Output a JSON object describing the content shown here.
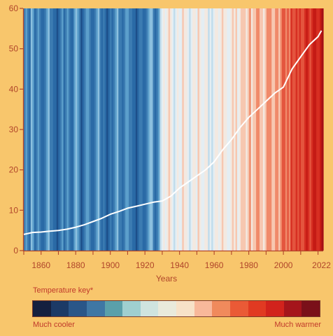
{
  "chart_data": {
    "type": "line",
    "background_stripes": true,
    "years_start": 1850,
    "years_end": 2023,
    "stripe_colors": [
      "#153d6e",
      "#1d4f8a",
      "#2a6aa6",
      "#3c7cb2",
      "#5c9fcb",
      "#8cc0df",
      "#c0dcec",
      "#e4eef3",
      "#f3e9e1",
      "#f7c7b0",
      "#f08a6a",
      "#e4553e",
      "#d72f22",
      "#c51b15",
      "#a50f15"
    ],
    "stripe_pattern": [
      3,
      4,
      3,
      2,
      5,
      4,
      2,
      3,
      4,
      3,
      2,
      2,
      3,
      4,
      5,
      3,
      3,
      2,
      2,
      1,
      2,
      3,
      4,
      2,
      3,
      4,
      3,
      2,
      2,
      4,
      5,
      4,
      3,
      1,
      2,
      3,
      4,
      4,
      3,
      2,
      2,
      3,
      4,
      5,
      3,
      2,
      3,
      2,
      1,
      2,
      3,
      2,
      3,
      4,
      5,
      3,
      3,
      2,
      3,
      4,
      4,
      3,
      3,
      2,
      2,
      1,
      2,
      3,
      3,
      2,
      2,
      3,
      4,
      5,
      5,
      3,
      2,
      3,
      4,
      6,
      7,
      8,
      7,
      8,
      9,
      8,
      7,
      6,
      7,
      8,
      7,
      7,
      9,
      8,
      8,
      7,
      6,
      7,
      8,
      8,
      7,
      9,
      8,
      7,
      7,
      8,
      8,
      6,
      7,
      6,
      7,
      8,
      8,
      7,
      8,
      9,
      8,
      8,
      7,
      7,
      8,
      9,
      8,
      9,
      7,
      8,
      9,
      9,
      9,
      8,
      9,
      10,
      8,
      9,
      9,
      10,
      10,
      9,
      9,
      8,
      9,
      10,
      10,
      10,
      9,
      9,
      10,
      10,
      9,
      10,
      11,
      11,
      10,
      11,
      10,
      12,
      11,
      11,
      12,
      11,
      12,
      11,
      11,
      12,
      13,
      12,
      11,
      12,
      13,
      13,
      12,
      12,
      13,
      14
    ],
    "x_ticks": [
      1860,
      1880,
      1900,
      1920,
      1940,
      1960,
      1980,
      2000,
      2022
    ],
    "y_ticks": [
      0,
      10,
      20,
      30,
      40,
      50,
      60
    ],
    "ylim": [
      0,
      60
    ],
    "xlabel": "Years",
    "ylabel": "",
    "series": [
      {
        "x": [
          1850,
          1855,
          1860,
          1865,
          1870,
          1875,
          1880,
          1885,
          1890,
          1895,
          1900,
          1905,
          1910,
          1915,
          1920,
          1925,
          1930,
          1935,
          1940,
          1945,
          1950,
          1955,
          1960,
          1965,
          1970,
          1975,
          1980,
          1985,
          1990,
          1995,
          2000,
          2005,
          2010,
          2015,
          2020,
          2022
        ],
        "values": [
          4,
          4.5,
          4.6,
          4.8,
          5,
          5.3,
          5.8,
          6.4,
          7.2,
          8,
          9,
          9.7,
          10.5,
          11,
          11.5,
          12,
          12.3,
          13.5,
          15.5,
          17,
          18.5,
          20,
          22,
          25,
          27.5,
          30.5,
          33,
          35,
          37,
          39,
          40.5,
          45,
          48,
          51,
          53,
          54.5
        ],
        "color": "#ffffff"
      }
    ]
  },
  "key": {
    "title": "Temperature key*",
    "low_label": "Much cooler",
    "high_label": "Much warmer",
    "colors": [
      "#15203f",
      "#1c3a66",
      "#2a5688",
      "#3f77a4",
      "#5aa0aa",
      "#9fcfd0",
      "#cfe4df",
      "#e9eadb",
      "#f7e2c8",
      "#f8b89a",
      "#f08a5c",
      "#ea5a36",
      "#e13a22",
      "#d2231c",
      "#a5151b",
      "#7a1019"
    ]
  }
}
